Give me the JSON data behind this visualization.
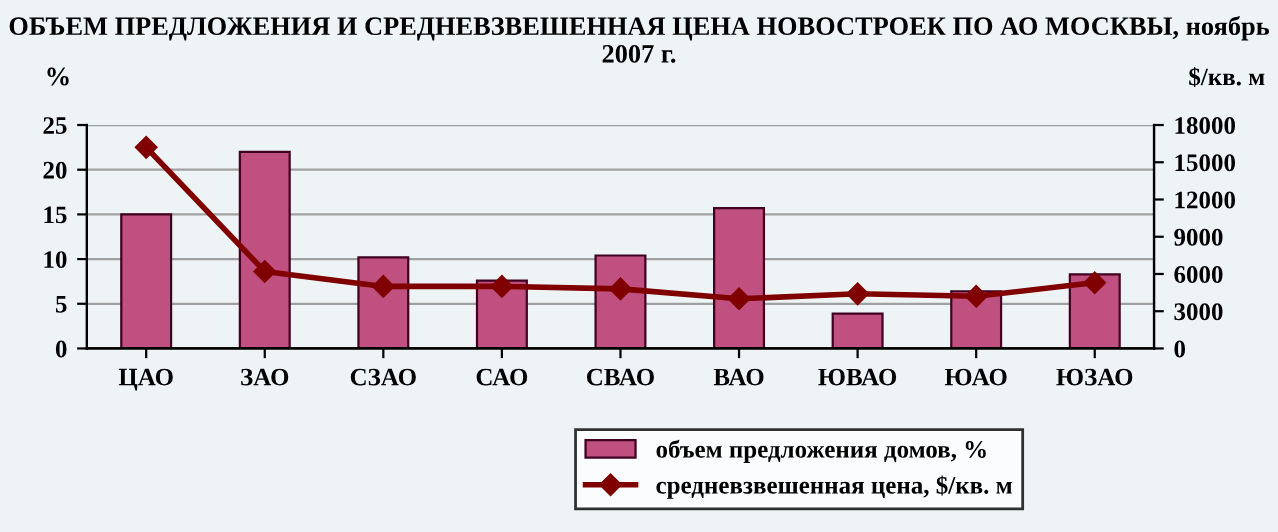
{
  "chart_data": {
    "type": "bar",
    "title": "ОБЪЕМ ПРЕДЛОЖЕНИЯ И СРЕДНЕВЗВЕШЕННАЯ ЦЕНА НОВОСТРОЕК ПО АО МОСКВЫ, ноябрь 2007 г.",
    "ylabel": "%",
    "y2label": "$/кв. м",
    "categories": [
      "ЦАО",
      "ЗАО",
      "СЗАО",
      "САО",
      "СВАО",
      "ВАО",
      "ЮВАО",
      "ЮАО",
      "ЮЗАО"
    ],
    "series": [
      {
        "name": "объем предложения домов, %",
        "color": "#c0507f",
        "values": [
          15,
          22,
          10.2,
          7.6,
          10.4,
          15.7,
          3.9,
          6.4,
          8.3
        ]
      },
      {
        "name": "средневзвешенная цена, $/кв. м",
        "type": "line",
        "axis": "y2",
        "color": "#800000",
        "marker": "diamond",
        "values": [
          16200,
          6200,
          5000,
          5000,
          4800,
          4000,
          4400,
          4200,
          5300
        ]
      }
    ],
    "ylim": [
      0,
      25
    ],
    "yticks": [
      0,
      5,
      10,
      15,
      20,
      25
    ],
    "y2lim": [
      0,
      18000
    ],
    "y2ticks": [
      0,
      3000,
      6000,
      9000,
      12000,
      15000,
      18000
    ],
    "grid": "y",
    "legend": "bottom right"
  }
}
